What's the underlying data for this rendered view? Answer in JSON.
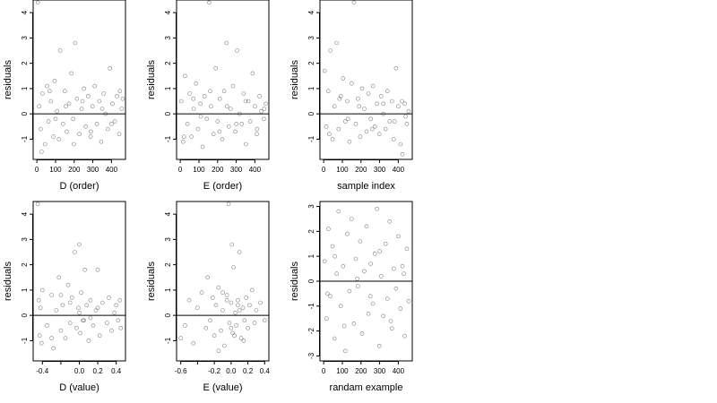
{
  "chart_data": [
    {
      "type": "scatter",
      "xlabel": "D (order)",
      "ylabel": "residuals",
      "xlim": [
        -20,
        475
      ],
      "ylim": [
        -1.8,
        4.5
      ],
      "xticks": [
        0,
        100,
        200,
        300,
        400
      ],
      "xtick_labels": [
        "0",
        "100",
        "200",
        "300",
        "400"
      ],
      "yticks": [
        -1,
        0,
        1,
        2,
        3,
        4
      ],
      "ytick_labels": [
        "-1",
        "0",
        "1",
        "2",
        "3",
        "4"
      ],
      "hline": 0,
      "x": [
        5,
        12,
        20,
        30,
        44,
        55,
        62,
        75,
        88,
        95,
        108,
        118,
        125,
        140,
        150,
        160,
        172,
        185,
        195,
        205,
        215,
        228,
        240,
        252,
        262,
        275,
        288,
        298,
        310,
        322,
        335,
        345,
        358,
        368,
        380,
        392,
        405,
        418,
        430,
        442,
        455,
        460,
        25,
        68,
        100,
        155,
        198,
        245,
        290,
        350,
        400,
        445
      ],
      "y": [
        4.4,
        0.3,
        -0.6,
        0.8,
        -1.2,
        1.1,
        -0.3,
        0.5,
        -0.9,
        1.3,
        0.1,
        -1.0,
        2.5,
        -0.4,
        0.9,
        -0.7,
        0.4,
        1.6,
        -0.2,
        2.8,
        0.6,
        -0.8,
        0.2,
        1.0,
        -0.5,
        0.7,
        -0.9,
        0.3,
        1.1,
        -0.4,
        0.5,
        -1.1,
        0.8,
        0.0,
        -0.6,
        1.8,
        0.4,
        -0.3,
        0.7,
        -0.8,
        0.2,
        0.6,
        -1.5,
        0.9,
        -0.2,
        0.3,
        -1.2,
        0.5,
        -0.7,
        0.2,
        -0.4,
        0.9
      ]
    },
    {
      "type": "scatter",
      "xlabel": "E (order)",
      "ylabel": "residuals",
      "xlim": [
        -20,
        475
      ],
      "ylim": [
        -1.8,
        4.5
      ],
      "xticks": [
        0,
        100,
        200,
        300,
        400
      ],
      "xtick_labels": [
        "0",
        "100",
        "200",
        "300",
        "400"
      ],
      "yticks": [
        -1,
        0,
        1,
        2,
        3,
        4
      ],
      "ytick_labels": [
        "-1",
        "0",
        "1",
        "2",
        "3",
        "4"
      ],
      "hline": 0,
      "x": [
        5,
        15,
        25,
        38,
        50,
        60,
        72,
        85,
        95,
        108,
        120,
        130,
        142,
        155,
        165,
        178,
        190,
        200,
        212,
        225,
        235,
        248,
        260,
        270,
        283,
        295,
        305,
        318,
        330,
        340,
        352,
        365,
        375,
        388,
        400,
        412,
        425,
        435,
        448,
        458,
        20,
        70,
        110,
        160,
        210,
        250,
        300,
        350,
        410,
        450
      ],
      "y": [
        0.5,
        -1.1,
        1.5,
        -0.4,
        0.8,
        -0.9,
        0.2,
        1.2,
        -0.6,
        0.4,
        -1.3,
        0.7,
        -0.2,
        4.4,
        0.3,
        -0.8,
        1.8,
        -0.3,
        0.6,
        -1.0,
        0.9,
        2.8,
        -0.5,
        0.2,
        1.1,
        -0.7,
        2.5,
        0.0,
        -0.4,
        0.8,
        -1.2,
        0.5,
        -0.3,
        1.6,
        0.3,
        -0.6,
        0.7,
        0.1,
        -0.2,
        0.4,
        -0.9,
        0.6,
        -0.1,
        0.9,
        -0.7,
        0.3,
        -0.4,
        0.5,
        -0.8,
        0.2
      ]
    },
    {
      "type": "scatter",
      "xlabel": "sample index",
      "ylabel": "residuals",
      "xlim": [
        -20,
        475
      ],
      "ylim": [
        -1.8,
        4.5
      ],
      "xticks": [
        0,
        100,
        200,
        300,
        400
      ],
      "xtick_labels": [
        "0",
        "100",
        "200",
        "300",
        "400"
      ],
      "yticks": [
        -1,
        0,
        1,
        2,
        3,
        4
      ],
      "ytick_labels": [
        "-1",
        "0",
        "1",
        "2",
        "3",
        "4"
      ],
      "hline": 0,
      "x": [
        5,
        14,
        24,
        36,
        48,
        58,
        70,
        80,
        92,
        104,
        116,
        126,
        138,
        150,
        162,
        172,
        184,
        196,
        206,
        218,
        230,
        240,
        252,
        264,
        274,
        286,
        298,
        308,
        320,
        332,
        342,
        354,
        366,
        376,
        388,
        400,
        412,
        422,
        434,
        446,
        456,
        30,
        85,
        130,
        190,
        260,
        320,
        380,
        420,
        440
      ],
      "y": [
        1.7,
        -0.5,
        0.9,
        2.5,
        -1.0,
        0.3,
        2.8,
        -0.6,
        0.7,
        1.4,
        -0.3,
        0.5,
        -1.1,
        1.2,
        4.4,
        -0.4,
        0.6,
        -0.9,
        1.0,
        0.2,
        -0.7,
        0.8,
        -0.2,
        1.1,
        -0.5,
        0.4,
        -0.8,
        0.7,
        0.0,
        -0.6,
        0.9,
        -0.3,
        0.5,
        -1.0,
        1.8,
        0.3,
        -1.2,
        -1.6,
        0.4,
        -0.4,
        0.1,
        -0.8,
        0.6,
        -0.2,
        0.3,
        -0.6,
        0.4,
        -0.3,
        0.5,
        -0.1
      ]
    },
    {
      "type": "scatter",
      "xlabel": "D (value)",
      "ylabel": "residuals",
      "xlim": [
        -0.5,
        0.5
      ],
      "ylim": [
        -1.8,
        4.5
      ],
      "xticks": [
        -0.4,
        -0.2,
        0.0,
        0.2,
        0.4
      ],
      "xtick_labels": [
        "-0.4",
        "",
        "0.0",
        "0.2",
        "0.4"
      ],
      "yticks": [
        -1,
        0,
        1,
        2,
        3,
        4
      ],
      "ytick_labels": [
        "-1",
        "0",
        "1",
        "2",
        "3",
        "4"
      ],
      "hline": 0,
      "x": [
        -0.45,
        -0.44,
        -0.43,
        -0.42,
        -0.41,
        -0.4,
        -0.35,
        -0.3,
        -0.28,
        -0.25,
        -0.22,
        -0.2,
        -0.18,
        -0.15,
        -0.12,
        -0.1,
        -0.08,
        -0.05,
        -0.03,
        -0.01,
        0.0,
        0.01,
        0.02,
        0.04,
        0.06,
        0.08,
        0.1,
        0.12,
        0.15,
        0.18,
        0.2,
        0.22,
        0.25,
        0.3,
        0.32,
        0.35,
        0.4,
        0.42,
        0.44,
        0.45,
        -0.3,
        -0.1,
        0.05,
        0.2,
        0.38,
        -0.2,
        0.0,
        0.12
      ],
      "y": [
        4.4,
        0.6,
        -0.8,
        0.3,
        -1.1,
        1.0,
        -0.4,
        0.8,
        -1.3,
        0.2,
        1.5,
        -0.6,
        0.4,
        -0.9,
        1.2,
        -0.3,
        0.7,
        2.5,
        -0.5,
        0.3,
        2.8,
        -0.7,
        0.9,
        -0.2,
        1.8,
        0.4,
        -1.0,
        0.6,
        -0.4,
        0.2,
        1.8,
        -0.8,
        0.5,
        -0.3,
        0.7,
        -0.6,
        0.4,
        -0.2,
        0.6,
        -0.5,
        -0.9,
        0.5,
        -0.2,
        0.3,
        0.1,
        0.8,
        0.1,
        -0.1
      ]
    },
    {
      "type": "scatter",
      "xlabel": "E (value)",
      "ylabel": "residuals",
      "xlim": [
        -0.65,
        0.45
      ],
      "ylim": [
        -1.8,
        4.5
      ],
      "xticks": [
        -0.6,
        -0.4,
        -0.2,
        0.0,
        0.2,
        0.4
      ],
      "xtick_labels": [
        "-0.6",
        "",
        "-0.2",
        "0.0",
        "0.2",
        "0.4"
      ],
      "yticks": [
        -1,
        0,
        1,
        2,
        3,
        4
      ],
      "ytick_labels": [
        "-1",
        "0",
        "1",
        "2",
        "3",
        "4"
      ],
      "hline": 0,
      "x": [
        -0.6,
        -0.55,
        -0.5,
        -0.45,
        -0.4,
        -0.35,
        -0.3,
        -0.28,
        -0.25,
        -0.22,
        -0.2,
        -0.18,
        -0.15,
        -0.12,
        -0.1,
        -0.08,
        -0.05,
        -0.03,
        -0.02,
        0.0,
        0.01,
        0.02,
        0.03,
        0.05,
        0.06,
        0.08,
        0.1,
        0.12,
        0.14,
        0.16,
        0.18,
        0.2,
        0.22,
        0.25,
        0.28,
        0.3,
        0.35,
        0.4,
        -0.15,
        -0.05,
        0.04,
        0.1,
        0.15,
        -0.1,
        0.0,
        0.08
      ],
      "y": [
        -0.9,
        -0.4,
        0.6,
        -1.1,
        0.3,
        0.9,
        -0.5,
        1.5,
        -0.2,
        0.7,
        -0.8,
        0.4,
        1.1,
        -0.6,
        0.2,
        -1.2,
        0.8,
        4.4,
        -0.3,
        0.5,
        2.8,
        -0.7,
        1.9,
        0.1,
        -0.4,
        0.6,
        2.5,
        -0.9,
        0.3,
        -0.2,
        0.7,
        -0.5,
        0.4,
        1.0,
        -0.3,
        0.2,
        0.5,
        -0.2,
        -1.4,
        0.6,
        -0.8,
        0.2,
        -1.0,
        0.9,
        -0.5,
        0.4
      ]
    },
    {
      "type": "scatter",
      "xlabel": "randam example",
      "ylabel": "residuals",
      "xlim": [
        -20,
        475
      ],
      "ylim": [
        -3.2,
        3.2
      ],
      "xticks": [
        0,
        100,
        200,
        300,
        400
      ],
      "xtick_labels": [
        "0",
        "100",
        "200",
        "300",
        "400"
      ],
      "yticks": [
        -3,
        -2,
        -1,
        0,
        1,
        2,
        3
      ],
      "ytick_labels": [
        "-3",
        "-2",
        "-1",
        "0",
        "1",
        "2",
        "3"
      ],
      "hline": 0,
      "x": [
        5,
        15,
        25,
        35,
        48,
        58,
        70,
        80,
        92,
        104,
        116,
        126,
        138,
        150,
        162,
        172,
        184,
        196,
        206,
        218,
        230,
        240,
        252,
        264,
        274,
        286,
        298,
        308,
        320,
        332,
        342,
        354,
        366,
        376,
        388,
        400,
        412,
        422,
        434,
        446,
        456,
        20,
        60,
        110,
        180,
        250,
        300,
        360,
        430
      ],
      "y": [
        0.8,
        -1.5,
        2.1,
        -0.6,
        1.4,
        -2.3,
        0.3,
        2.8,
        -1.0,
        0.6,
        -2.8,
        1.9,
        -0.4,
        2.5,
        -1.7,
        0.9,
        -0.2,
        1.6,
        -2.1,
        0.4,
        2.2,
        -1.3,
        0.7,
        -0.9,
        1.1,
        2.9,
        -2.6,
        0.2,
        -1.4,
        1.5,
        -0.7,
        2.4,
        -1.9,
        0.5,
        -0.3,
        1.8,
        -1.1,
        0.6,
        -2.2,
        1.3,
        -0.8,
        -0.5,
        1.0,
        -1.8,
        0.1,
        -0.6,
        1.2,
        -1.6,
        0.3
      ]
    }
  ]
}
